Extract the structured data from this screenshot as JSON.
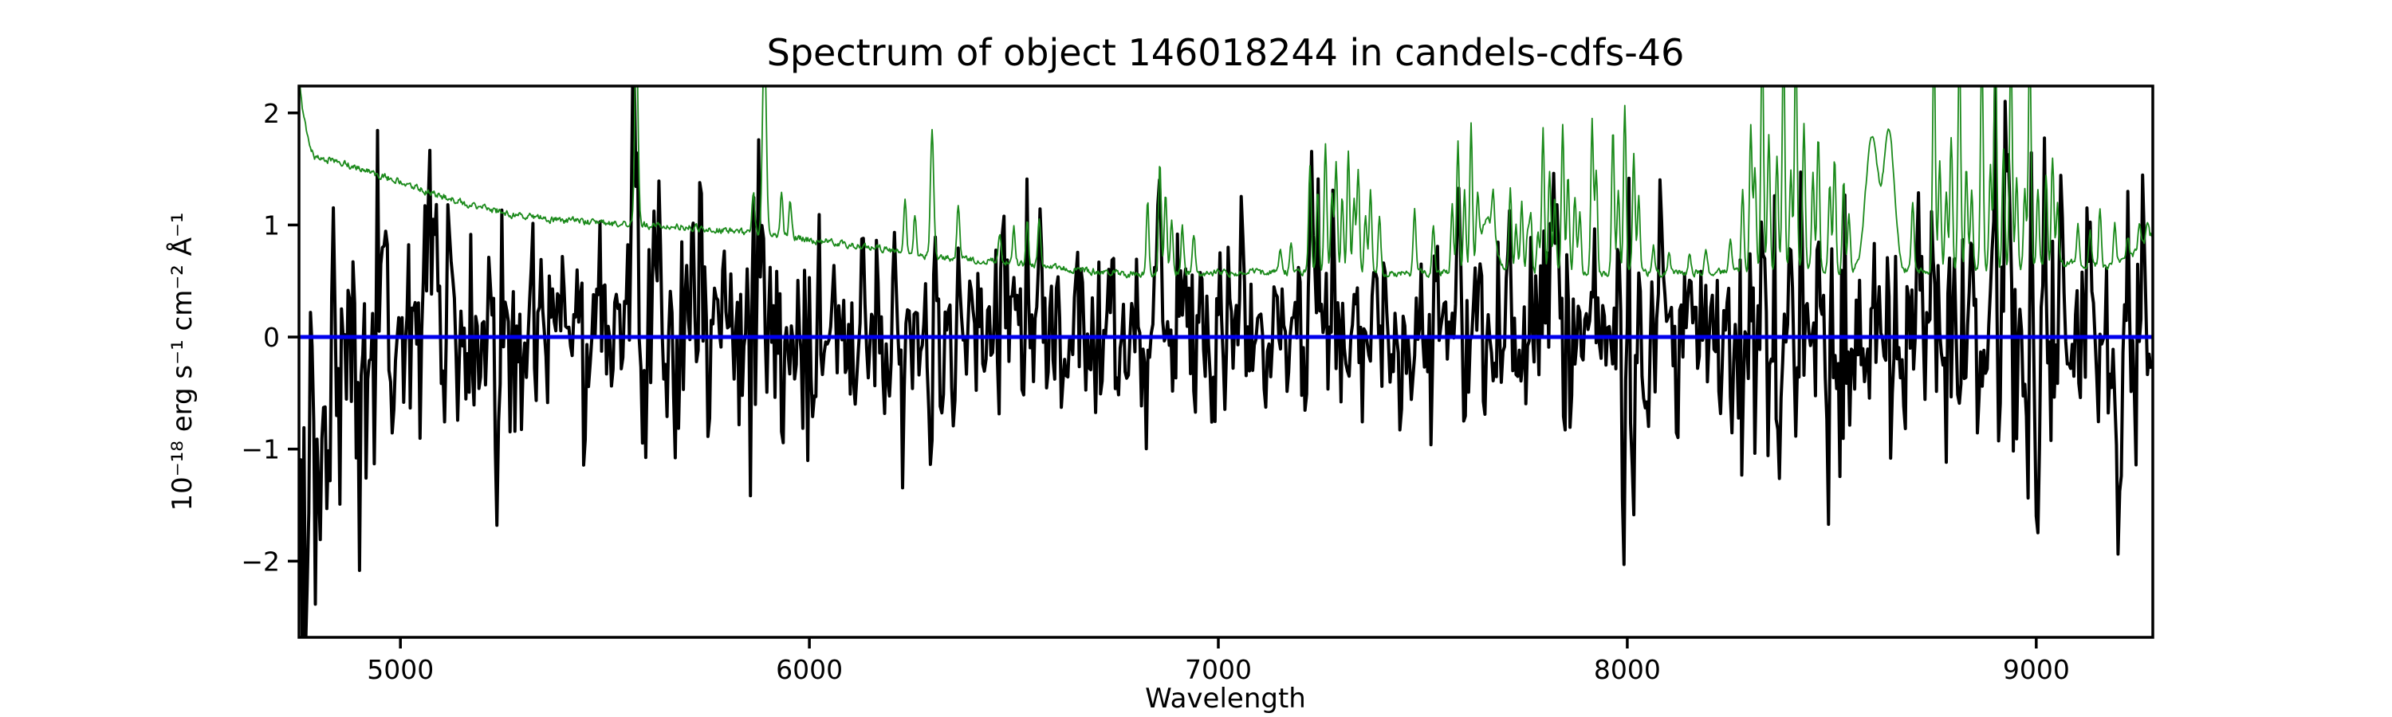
{
  "figure": {
    "title": "Spectrum of object 146018244 in candels-cdfs-46",
    "xlabel": "Wavelength",
    "ylabel": "10⁻¹⁸ erg s⁻¹ cm⁻² Å⁻¹"
  },
  "chart_data": {
    "type": "line",
    "title": "Spectrum of object 146018244 in candels-cdfs-46",
    "xlabel": "Wavelength",
    "ylabel": "10^-18 erg s^-1 cm^-2 A^-1",
    "xlim": [
      4752,
      9285
    ],
    "ylim": [
      -2.68,
      2.24
    ],
    "xticks": [
      5000,
      6000,
      7000,
      8000,
      9000
    ],
    "xtick_labels": [
      "5000",
      "6000",
      "7000",
      "8000",
      "9000"
    ],
    "yticks": [
      2,
      1,
      0,
      -1,
      -2
    ],
    "ytick_labels": [
      "2",
      "1",
      "0",
      "−1",
      "−2"
    ],
    "grid": false,
    "legend": "none",
    "colors": {
      "flux": "#000000",
      "sky": "#1b8a1b",
      "zero": "#0000ee",
      "spine": "#000000"
    },
    "series": [
      {
        "name": "object-flux",
        "kind": "noisy-spectrum",
        "color": "#000000",
        "linewidth": 4,
        "synthesis": {
          "seed": 146018244,
          "step": 4,
          "ar": 0.25,
          "sigma_anchors": [
            [
              4752,
              0.8
            ],
            [
              4800,
              0.75
            ],
            [
              4870,
              0.6
            ],
            [
              5000,
              0.52
            ],
            [
              5400,
              0.48
            ],
            [
              6000,
              0.44
            ],
            [
              6600,
              0.4
            ],
            [
              7200,
              0.36
            ],
            [
              7800,
              0.37
            ],
            [
              8300,
              0.4
            ],
            [
              8800,
              0.42
            ],
            [
              9285,
              0.5
            ]
          ],
          "bias_anchors": [
            [
              4752,
              -0.6
            ],
            [
              4800,
              -0.5
            ],
            [
              4870,
              -0.25
            ],
            [
              4960,
              -0.1
            ],
            [
              5080,
              -0.02
            ],
            [
              5200,
              0
            ],
            [
              9285,
              0
            ]
          ],
          "skyline_boost": 0.8,
          "features": [
            [
              4757,
              -1.85,
              5
            ],
            [
              4771,
              -1.35,
              6
            ],
            [
              4789,
              -1.15,
              5
            ],
            [
              4807,
              -0.95,
              6
            ],
            [
              4835,
              0.7,
              4
            ],
            [
              4902,
              -0.85,
              5
            ],
            [
              4960,
              0.8,
              4
            ],
            [
              5055,
              0.9,
              4
            ],
            [
              5120,
              1.0,
              4
            ],
            [
              5240,
              -0.9,
              5
            ],
            [
              5320,
              0.85,
              4
            ],
            [
              5450,
              -0.8,
              5
            ],
            [
              5570,
              2.18,
              4
            ],
            [
              5700,
              0.9,
              4
            ],
            [
              5876,
              1.05,
              4
            ],
            [
              5990,
              0.85,
              4
            ],
            [
              6130,
              0.9,
              4
            ],
            [
              6310,
              0.8,
              4
            ],
            [
              6470,
              0.85,
              4
            ],
            [
              6562,
              0.9,
              4
            ],
            [
              6740,
              0.75,
              4
            ],
            [
              6860,
              0.85,
              4
            ],
            [
              7060,
              0.8,
              4
            ],
            [
              7230,
              0.85,
              4
            ],
            [
              7340,
              0.8,
              4
            ],
            [
              7590,
              0.85,
              4
            ],
            [
              7715,
              0.9,
              4
            ],
            [
              7830,
              1.2,
              4
            ],
            [
              7920,
              0.95,
              4
            ],
            [
              7990,
              -1.3,
              6
            ],
            [
              8045,
              -0.85,
              5
            ],
            [
              8150,
              0.8,
              4
            ],
            [
              8332,
              1.0,
              4
            ],
            [
              8470,
              0.9,
              4
            ],
            [
              8602,
              1.05,
              4
            ],
            [
              8710,
              0.9,
              4
            ],
            [
              8790,
              1.1,
              4
            ],
            [
              8899,
              2.0,
              4
            ],
            [
              8928,
              1.05,
              4
            ],
            [
              9060,
              0.9,
              4
            ],
            [
              9130,
              1.0,
              4
            ],
            [
              9200,
              -0.9,
              5
            ],
            [
              9260,
              0.95,
              4
            ]
          ]
        }
      },
      {
        "name": "noise-sky-spectrum",
        "kind": "continuum-plus-lines",
        "color": "#1b8a1b",
        "linewidth": 1.8,
        "step": 2,
        "continuum_anchors": [
          [
            4752,
            2.35
          ],
          [
            4760,
            2.05
          ],
          [
            4772,
            1.78
          ],
          [
            4790,
            1.62
          ],
          [
            4850,
            1.56
          ],
          [
            4920,
            1.48
          ],
          [
            5000,
            1.38
          ],
          [
            5080,
            1.28
          ],
          [
            5160,
            1.19
          ],
          [
            5270,
            1.1
          ],
          [
            5400,
            1.04
          ],
          [
            5560,
            1.0
          ],
          [
            5690,
            0.99
          ],
          [
            5800,
            0.95
          ],
          [
            5900,
            0.92
          ],
          [
            6040,
            0.85
          ],
          [
            6180,
            0.79
          ],
          [
            6300,
            0.71
          ],
          [
            6450,
            0.68
          ],
          [
            6600,
            0.62
          ],
          [
            6790,
            0.56
          ],
          [
            7000,
            0.575
          ],
          [
            7200,
            0.58
          ],
          [
            7430,
            0.565
          ],
          [
            7600,
            0.58
          ],
          [
            7800,
            0.57
          ],
          [
            8000,
            0.57
          ],
          [
            8200,
            0.575
          ],
          [
            8450,
            0.6
          ],
          [
            8700,
            0.585
          ],
          [
            8900,
            0.6
          ],
          [
            9000,
            0.62
          ],
          [
            9090,
            0.66
          ],
          [
            9170,
            0.62
          ],
          [
            9230,
            0.7
          ],
          [
            9284,
            0.92
          ]
        ],
        "sky_lines": [
          [
            5577,
            2.7,
            4
          ],
          [
            5863,
            1.3
          ],
          [
            5890,
            2.7,
            4.5
          ],
          [
            5932,
            1.3
          ],
          [
            5953,
            1.2
          ],
          [
            6234,
            1.25
          ],
          [
            6258,
            1.08
          ],
          [
            6300,
            1.82,
            4
          ],
          [
            6364,
            1.16
          ],
          [
            6465,
            0.92
          ],
          [
            6500,
            0.98
          ],
          [
            6533,
            1.03
          ],
          [
            6562,
            1.08
          ],
          [
            6827,
            1.2
          ],
          [
            6857,
            1.55
          ],
          [
            6871,
            1.28
          ],
          [
            6886,
            1.05
          ],
          [
            6912,
            0.98
          ],
          [
            6940,
            0.9
          ],
          [
            7152,
            0.78
          ],
          [
            7178,
            0.82
          ],
          [
            7224,
            1.55
          ],
          [
            7243,
            1.32
          ],
          [
            7262,
            1.72
          ],
          [
            7278,
            1.3
          ],
          [
            7288,
            1.55
          ],
          [
            7303,
            1.25
          ],
          [
            7318,
            1.65
          ],
          [
            7332,
            1.22
          ],
          [
            7342,
            1.45
          ],
          [
            7360,
            1.1
          ],
          [
            7372,
            1.3
          ],
          [
            7394,
            1.08
          ],
          [
            7480,
            1.15
          ],
          [
            7526,
            1.0
          ],
          [
            7572,
            1.2
          ],
          [
            7586,
            1.75
          ],
          [
            7602,
            1.3
          ],
          [
            7618,
            1.85
          ],
          [
            7634,
            1.1
          ],
          [
            7658,
            1.05,
            18
          ],
          [
            7672,
            0.95
          ],
          [
            7714,
            1.3
          ],
          [
            7728,
            1.0
          ],
          [
            7742,
            1.2
          ],
          [
            7756,
            0.95
          ],
          [
            7764,
            1.1
          ],
          [
            7782,
            0.95
          ],
          [
            7794,
            1.85
          ],
          [
            7810,
            1.5
          ],
          [
            7823,
            1.25
          ],
          [
            7842,
            1.9
          ],
          [
            7855,
            1.45
          ],
          [
            7872,
            1.25
          ],
          [
            7884,
            1.1
          ],
          [
            7914,
            1.95
          ],
          [
            7924,
            1.5
          ],
          [
            7965,
            1.88
          ],
          [
            7978,
            1.3
          ],
          [
            7994,
            2.05
          ],
          [
            8016,
            1.65
          ],
          [
            8028,
            1.25
          ],
          [
            8064,
            0.8
          ],
          [
            8102,
            0.75
          ],
          [
            8152,
            0.73
          ],
          [
            8192,
            0.78
          ],
          [
            8252,
            0.85
          ],
          [
            8282,
            1.3
          ],
          [
            8302,
            1.9
          ],
          [
            8312,
            1.5
          ],
          [
            8330,
            2.7
          ],
          [
            8346,
            1.8
          ],
          [
            8366,
            1.6
          ],
          [
            8382,
            2.7
          ],
          [
            8400,
            1.5
          ],
          [
            8412,
            2.7
          ],
          [
            8432,
            1.9
          ],
          [
            8454,
            1.45
          ],
          [
            8467,
            1.8
          ],
          [
            8495,
            1.35
          ],
          [
            8507,
            1.6
          ],
          [
            8529,
            1.4
          ],
          [
            8542,
            1.1
          ],
          [
            8598,
            1.78,
            15
          ],
          [
            8640,
            1.82,
            13
          ],
          [
            8698,
            1.2
          ],
          [
            8750,
            2.7
          ],
          [
            8764,
            1.6
          ],
          [
            8780,
            1.3
          ],
          [
            8792,
            1.8
          ],
          [
            8812,
            2.7
          ],
          [
            8829,
            1.5
          ],
          [
            8842,
            1.3
          ],
          [
            8867,
            2.7
          ],
          [
            8888,
            1.55
          ],
          [
            8900,
            2.7
          ],
          [
            8920,
            1.7
          ],
          [
            8938,
            2.7
          ],
          [
            8952,
            1.4
          ],
          [
            8972,
            1.3
          ],
          [
            8984,
            2.7
          ],
          [
            9004,
            1.3
          ],
          [
            9024,
            1.45
          ],
          [
            9040,
            1.6
          ],
          [
            9052,
            1.2
          ],
          [
            9102,
            1.0
          ],
          [
            9132,
            0.95
          ],
          [
            9156,
            1.15
          ],
          [
            9192,
            1.0
          ],
          [
            9224,
            0.9
          ],
          [
            9252,
            1.0
          ],
          [
            9272,
            1.05
          ]
        ]
      },
      {
        "name": "zero-reference-line",
        "kind": "hline",
        "color": "#0000ee",
        "linewidth": 5,
        "y": 0
      }
    ]
  }
}
